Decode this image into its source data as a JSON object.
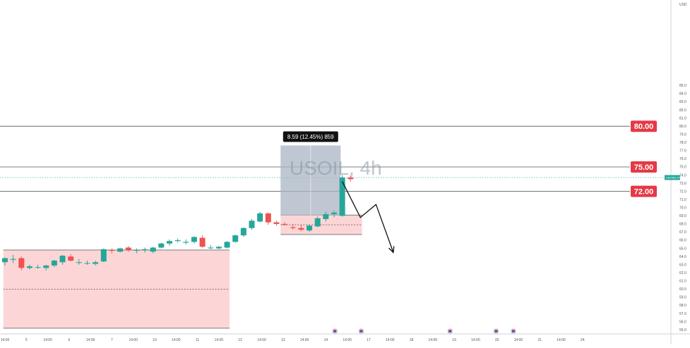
{
  "chart_data": {
    "type": "candlestick",
    "watermark": "USOIL, 4h",
    "currency": "USD",
    "ylim": [
      54.5,
      95.5
    ],
    "y_ticks": [
      55.0,
      56.0,
      57.0,
      58.0,
      59.0,
      60.0,
      61.0,
      62.0,
      63.0,
      64.0,
      65.0,
      66.0,
      67.0,
      68.0,
      69.0,
      70.0,
      71.0,
      72.0,
      73.0,
      74.0,
      75.0,
      76.0,
      77.0,
      78.0,
      79.0,
      80.0,
      81.0,
      82.0,
      83.0,
      84.0,
      85.0
    ],
    "x_ticks": [
      {
        "label": "14:00",
        "i": 0
      },
      {
        "label": "5",
        "i": 2.6
      },
      {
        "label": "14:00",
        "i": 5.2
      },
      {
        "label": "6",
        "i": 7.8
      },
      {
        "label": "14:00",
        "i": 10.4
      },
      {
        "label": "7",
        "i": 13
      },
      {
        "label": "14:00",
        "i": 15.6
      },
      {
        "label": "10",
        "i": 18.2
      },
      {
        "label": "14:00",
        "i": 20.8
      },
      {
        "label": "11",
        "i": 23.4
      },
      {
        "label": "14:00",
        "i": 26
      },
      {
        "label": "12",
        "i": 28.6
      },
      {
        "label": "14:00",
        "i": 31.2
      },
      {
        "label": "13",
        "i": 33.8
      },
      {
        "label": "14:00",
        "i": 36.4
      },
      {
        "label": "14",
        "i": 39
      },
      {
        "label": "14:00",
        "i": 41.6
      },
      {
        "label": "17",
        "i": 44.2
      },
      {
        "label": "14:00",
        "i": 46.8
      },
      {
        "label": "18",
        "i": 49.4
      },
      {
        "label": "14:00",
        "i": 52
      },
      {
        "label": "19",
        "i": 54.6
      },
      {
        "label": "14:00",
        "i": 57.2
      },
      {
        "label": "20",
        "i": 59.8
      },
      {
        "label": "14:00",
        "i": 62.4
      },
      {
        "label": "21",
        "i": 65
      },
      {
        "label": "14:00",
        "i": 67.6
      },
      {
        "label": "24",
        "i": 70.2
      }
    ],
    "candles": [
      {
        "o": 63.3,
        "h": 63.9,
        "l": 62.9,
        "c": 63.8
      },
      {
        "o": 63.6,
        "h": 64.2,
        "l": 63.2,
        "c": 63.7
      },
      {
        "o": 63.8,
        "h": 64.0,
        "l": 62.3,
        "c": 62.6
      },
      {
        "o": 62.6,
        "h": 63.0,
        "l": 62.4,
        "c": 62.8
      },
      {
        "o": 62.7,
        "h": 63.0,
        "l": 62.5,
        "c": 62.7
      },
      {
        "o": 62.6,
        "h": 63.0,
        "l": 62.3,
        "c": 62.9
      },
      {
        "o": 62.9,
        "h": 63.6,
        "l": 62.7,
        "c": 63.5
      },
      {
        "o": 63.3,
        "h": 64.2,
        "l": 63.0,
        "c": 64.1
      },
      {
        "o": 64.0,
        "h": 64.3,
        "l": 63.4,
        "c": 63.5
      },
      {
        "o": 63.3,
        "h": 63.7,
        "l": 63.0,
        "c": 63.3
      },
      {
        "o": 63.2,
        "h": 63.5,
        "l": 63.0,
        "c": 63.2
      },
      {
        "o": 63.1,
        "h": 63.5,
        "l": 62.9,
        "c": 63.3
      },
      {
        "o": 63.4,
        "h": 65.0,
        "l": 63.3,
        "c": 64.9
      },
      {
        "o": 64.8,
        "h": 65.0,
        "l": 64.4,
        "c": 64.7
      },
      {
        "o": 64.6,
        "h": 65.1,
        "l": 64.5,
        "c": 65.0
      },
      {
        "o": 65.1,
        "h": 65.3,
        "l": 64.6,
        "c": 64.8
      },
      {
        "o": 64.8,
        "h": 65.0,
        "l": 64.4,
        "c": 64.8
      },
      {
        "o": 64.8,
        "h": 65.1,
        "l": 64.5,
        "c": 64.9
      },
      {
        "o": 64.6,
        "h": 65.2,
        "l": 64.4,
        "c": 65.1
      },
      {
        "o": 65.1,
        "h": 65.7,
        "l": 65.0,
        "c": 65.6
      },
      {
        "o": 65.6,
        "h": 66.1,
        "l": 65.3,
        "c": 65.9
      },
      {
        "o": 65.9,
        "h": 66.2,
        "l": 65.7,
        "c": 66.0
      },
      {
        "o": 65.7,
        "h": 66.1,
        "l": 65.5,
        "c": 65.8
      },
      {
        "o": 65.8,
        "h": 66.5,
        "l": 65.6,
        "c": 66.4
      },
      {
        "o": 66.3,
        "h": 66.6,
        "l": 65.1,
        "c": 65.2
      },
      {
        "o": 65.1,
        "h": 65.4,
        "l": 64.9,
        "c": 65.1
      },
      {
        "o": 65.0,
        "h": 65.3,
        "l": 64.9,
        "c": 65.2
      },
      {
        "o": 65.1,
        "h": 65.9,
        "l": 65.0,
        "c": 65.8
      },
      {
        "o": 65.8,
        "h": 66.7,
        "l": 65.7,
        "c": 66.6
      },
      {
        "o": 66.6,
        "h": 67.6,
        "l": 66.4,
        "c": 67.5
      },
      {
        "o": 67.5,
        "h": 68.6,
        "l": 67.3,
        "c": 68.4
      },
      {
        "o": 68.3,
        "h": 69.5,
        "l": 68.2,
        "c": 69.3
      },
      {
        "o": 69.3,
        "h": 69.4,
        "l": 67.9,
        "c": 68.2
      },
      {
        "o": 68.2,
        "h": 68.4,
        "l": 67.8,
        "c": 68.0
      },
      {
        "o": 68.0,
        "h": 68.2,
        "l": 67.8,
        "c": 67.9
      },
      {
        "o": 67.6,
        "h": 68.0,
        "l": 67.3,
        "c": 67.5
      },
      {
        "o": 67.5,
        "h": 67.9,
        "l": 67.1,
        "c": 67.3
      },
      {
        "o": 67.2,
        "h": 67.9,
        "l": 67.0,
        "c": 67.8
      },
      {
        "o": 67.7,
        "h": 68.9,
        "l": 67.6,
        "c": 68.7
      },
      {
        "o": 68.6,
        "h": 69.5,
        "l": 68.3,
        "c": 69.2
      },
      {
        "o": 69.2,
        "h": 69.6,
        "l": 68.8,
        "c": 69.4
      },
      {
        "o": 69.0,
        "h": 74.0,
        "l": 68.9,
        "c": 73.7
      },
      {
        "o": 73.7,
        "h": 74.0,
        "l": 73.2,
        "c": 73.5
      }
    ],
    "horizontal_levels": [
      {
        "value": 80.0,
        "label": "80.00"
      },
      {
        "value": 75.0,
        "label": "75.00"
      },
      {
        "value": 72.0,
        "label": "72.00"
      }
    ],
    "current_price": {
      "value": 73.7,
      "label": "USOIL"
    },
    "measure": {
      "label": "8.59 (12.45%) 859",
      "i_start": 33.5,
      "i_end": 40.8,
      "y_low": 69.05,
      "y_high": 77.64
    },
    "zones": [
      {
        "i_start": -0.2,
        "i_end": 27.3,
        "y_low": 55.2,
        "y_high": 64.8,
        "mid": 60.0
      },
      {
        "i_start": 33.5,
        "i_end": 43.4,
        "y_low": 66.7,
        "y_high": 69.1,
        "mid": 67.9
      }
    ],
    "projection_path": [
      [
        41.0,
        73.2
      ],
      [
        43.2,
        68.8
      ],
      [
        45.1,
        70.4
      ],
      [
        47.2,
        64.5
      ]
    ],
    "event_markers": [
      {
        "i": 40.1,
        "type": "flag"
      },
      {
        "i": 43.3,
        "type": "flag"
      },
      {
        "i": 54.1,
        "type": "flag"
      },
      {
        "i": 59.7,
        "type": "flag"
      },
      {
        "i": 61.8,
        "type": "flag"
      }
    ],
    "colors": {
      "up": "#26a69a",
      "down": "#ef5350",
      "level_label_bg": "#e53945",
      "zone_fill": "#fcd2d2",
      "measure_fill": "#a9b4c3",
      "measure_label_bg": "#111111"
    }
  }
}
